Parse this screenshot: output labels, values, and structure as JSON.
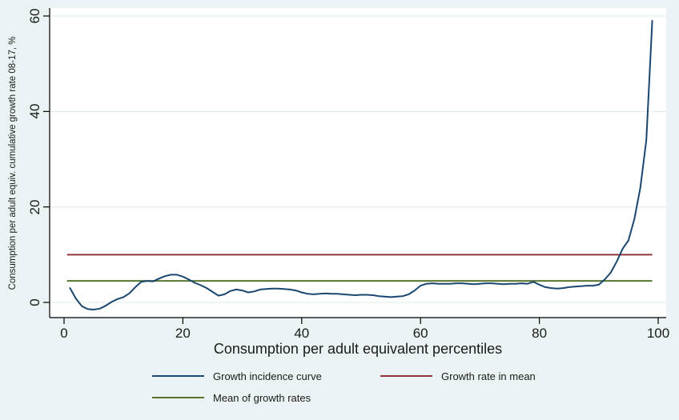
{
  "chart_data": {
    "type": "line",
    "title": "",
    "xlabel": "Consumption per adult equivalent percentiles",
    "ylabel": "Consumption per adult equiv. cumulative growth rate 08-17, %",
    "xticks": [
      0,
      20,
      40,
      60,
      80,
      100
    ],
    "yticks": [
      0,
      20,
      40,
      60
    ],
    "xlim": [
      0,
      100
    ],
    "ylim": [
      -3.2,
      61.7
    ],
    "grid": true,
    "legend_position": "below",
    "series": [
      {
        "name": "Growth incidence curve",
        "type": "line",
        "color": "#1a476f",
        "x": [
          1,
          2,
          3,
          4,
          5,
          6,
          7,
          8,
          9,
          10,
          11,
          12,
          13,
          14,
          15,
          16,
          17,
          18,
          19,
          20,
          21,
          22,
          23,
          24,
          25,
          26,
          27,
          28,
          29,
          30,
          31,
          32,
          33,
          34,
          35,
          36,
          37,
          38,
          39,
          40,
          41,
          42,
          43,
          44,
          45,
          46,
          47,
          48,
          49,
          50,
          51,
          52,
          53,
          54,
          55,
          56,
          57,
          58,
          59,
          60,
          61,
          62,
          63,
          64,
          65,
          66,
          67,
          68,
          69,
          70,
          71,
          72,
          73,
          74,
          75,
          76,
          77,
          78,
          79,
          80,
          81,
          82,
          83,
          84,
          85,
          86,
          87,
          88,
          89,
          90,
          91,
          92,
          93,
          94,
          95,
          96,
          97,
          98,
          99
        ],
        "y": [
          3.0,
          0.8,
          -0.8,
          -1.4,
          -1.5,
          -1.3,
          -0.7,
          0.1,
          0.7,
          1.1,
          1.9,
          3.2,
          4.3,
          4.5,
          4.4,
          5.0,
          5.5,
          5.8,
          5.8,
          5.4,
          4.8,
          4.1,
          3.6,
          3.0,
          2.2,
          1.4,
          1.7,
          2.4,
          2.7,
          2.5,
          2.1,
          2.3,
          2.7,
          2.8,
          2.9,
          2.9,
          2.8,
          2.7,
          2.5,
          2.1,
          1.8,
          1.7,
          1.8,
          1.9,
          1.8,
          1.8,
          1.7,
          1.6,
          1.5,
          1.6,
          1.6,
          1.5,
          1.3,
          1.2,
          1.1,
          1.2,
          1.3,
          1.7,
          2.5,
          3.5,
          3.9,
          4.0,
          3.9,
          3.9,
          3.9,
          4.0,
          4.0,
          3.9,
          3.8,
          3.9,
          4.0,
          4.0,
          3.9,
          3.8,
          3.9,
          3.9,
          4.0,
          3.9,
          4.3,
          3.7,
          3.2,
          3.0,
          2.9,
          3.0,
          3.2,
          3.3,
          3.4,
          3.5,
          3.5,
          3.7,
          4.8,
          6.2,
          8.5,
          11.2,
          13.0,
          17.5,
          24.0,
          34.0,
          59.0
        ]
      },
      {
        "name": "Growth rate in mean",
        "type": "hline",
        "color": "#90353b",
        "value": 10,
        "x_range": [
          0.5,
          99
        ]
      },
      {
        "name": "Mean of growth rates",
        "type": "hline",
        "color": "#55752f",
        "value": 4.5,
        "x_range": [
          0.5,
          99
        ]
      }
    ]
  },
  "colors": {
    "background": "#eaf2f3",
    "plot_background": "#ffffff",
    "gridline": "#dfe9eb",
    "axis": "#000000",
    "text": "#1a1a1a"
  }
}
